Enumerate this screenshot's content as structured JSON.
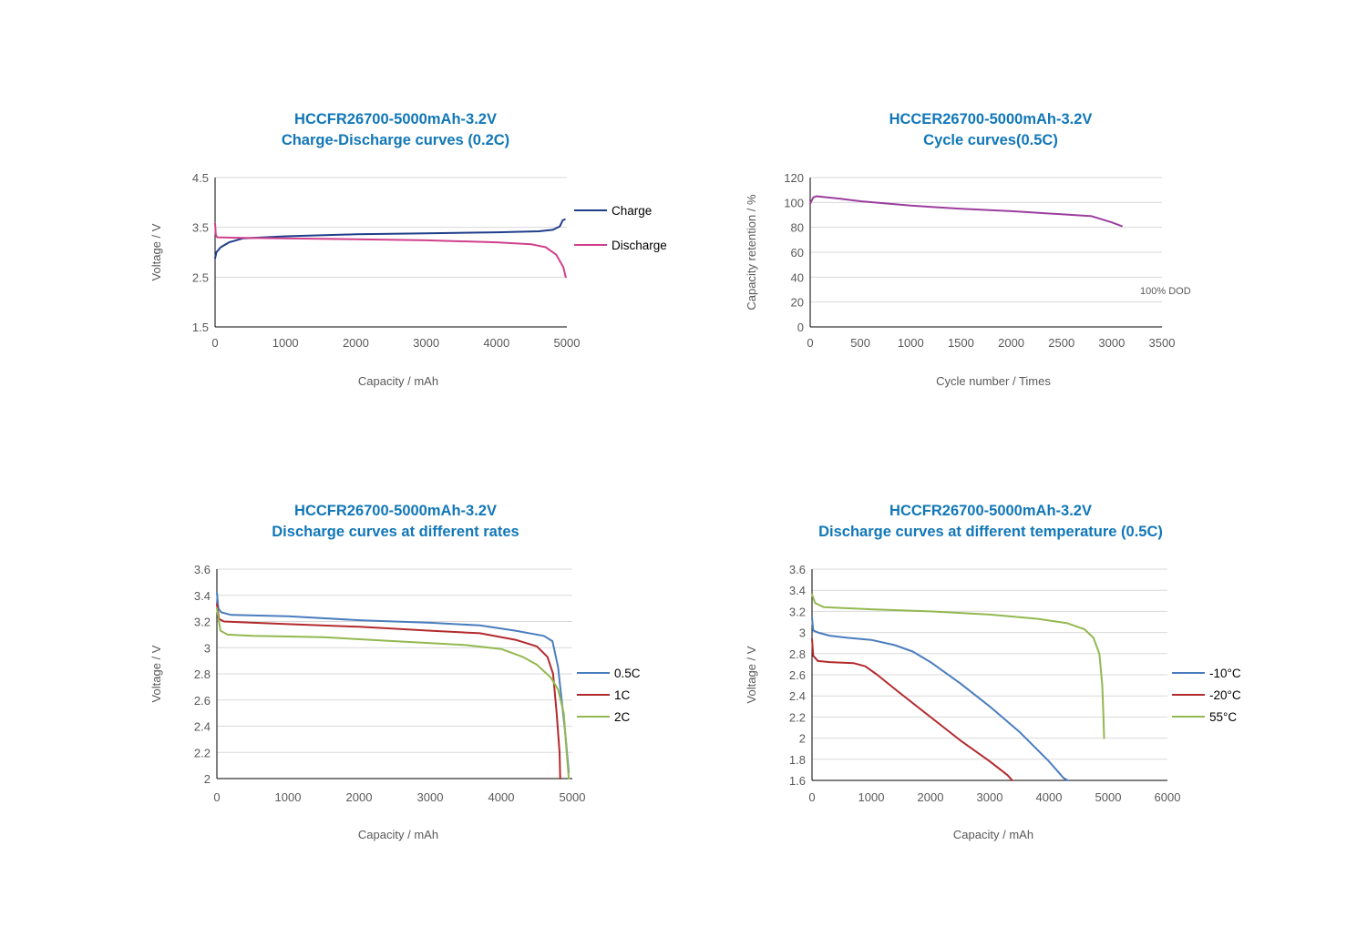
{
  "colors": {
    "title": "#1177b8",
    "charge": "#1f3e8a",
    "discharge": "#d0408c",
    "cycle": "#9b3d9e",
    "blue": "#4a7dbf",
    "red": "#b22a2e",
    "green": "#93b850",
    "grid": "#d9d9d9",
    "axis": "#000000",
    "text": "#595959"
  },
  "chart_data": [
    {
      "type": "line",
      "title_line1": "HCCFR26700-5000mAh-3.2V",
      "title_line2": "Charge-Discharge curves (0.2C)",
      "xlabel": "Capacity / mAh",
      "ylabel": "Voltage / V",
      "xlim": [
        0,
        5000
      ],
      "ylim": [
        1.5,
        4.5
      ],
      "xticks": [
        0,
        1000,
        2000,
        3000,
        4000,
        5000
      ],
      "yticks": [
        1.5,
        2.5,
        3.5,
        4.5
      ],
      "ytick_labels": [
        "1.5",
        "2.5",
        "3.5",
        "4.5"
      ],
      "legend": "right",
      "series": [
        {
          "name": "Charge",
          "color_key": "charge",
          "points": [
            [
              0,
              2.88
            ],
            [
              20,
              3.0
            ],
            [
              80,
              3.1
            ],
            [
              200,
              3.2
            ],
            [
              400,
              3.28
            ],
            [
              1000,
              3.32
            ],
            [
              2000,
              3.36
            ],
            [
              3000,
              3.38
            ],
            [
              4000,
              3.4
            ],
            [
              4600,
              3.42
            ],
            [
              4800,
              3.45
            ],
            [
              4900,
              3.52
            ],
            [
              4940,
              3.64
            ],
            [
              4970,
              3.66
            ]
          ]
        },
        {
          "name": "Discharge",
          "color_key": "discharge",
          "points": [
            [
              0,
              3.58
            ],
            [
              10,
              3.35
            ],
            [
              30,
              3.3
            ],
            [
              300,
              3.29
            ],
            [
              1000,
              3.28
            ],
            [
              2000,
              3.26
            ],
            [
              3000,
              3.24
            ],
            [
              4000,
              3.2
            ],
            [
              4500,
              3.16
            ],
            [
              4700,
              3.1
            ],
            [
              4850,
              2.95
            ],
            [
              4950,
              2.7
            ],
            [
              4985,
              2.5
            ]
          ]
        }
      ]
    },
    {
      "type": "line",
      "title_line1": "HCCER26700-5000mAh-3.2V",
      "title_line2": "Cycle curves(0.5C)",
      "xlabel": "Cycle number / Times",
      "ylabel": "Capacity retention / %",
      "xlim": [
        0,
        3500
      ],
      "ylim": [
        0,
        120
      ],
      "xticks": [
        0,
        500,
        1000,
        1500,
        2000,
        2500,
        3000,
        3500
      ],
      "yticks": [
        0,
        20,
        40,
        60,
        80,
        100,
        120
      ],
      "ytick_labels": [
        "0",
        "20",
        "40",
        "60",
        "80",
        "100",
        "120"
      ],
      "annotation": "100% DOD",
      "legend": "none",
      "series": [
        {
          "name": "Cycle",
          "color_key": "cycle",
          "points": [
            [
              0,
              99
            ],
            [
              30,
              104
            ],
            [
              60,
              105
            ],
            [
              300,
              103
            ],
            [
              500,
              101
            ],
            [
              1000,
              97.5
            ],
            [
              1500,
              95
            ],
            [
              2000,
              93
            ],
            [
              2500,
              90.5
            ],
            [
              2800,
              89
            ],
            [
              3000,
              84
            ],
            [
              3100,
              81
            ]
          ]
        }
      ]
    },
    {
      "type": "line",
      "title_line1": "HCCFR26700-5000mAh-3.2V",
      "title_line2": "Discharge curves at different rates",
      "xlabel": "Capacity / mAh",
      "ylabel": "Voltage / V",
      "xlim": [
        0,
        5000
      ],
      "ylim": [
        2.0,
        3.6
      ],
      "xticks": [
        0,
        1000,
        2000,
        3000,
        4000,
        5000
      ],
      "yticks": [
        2.0,
        2.2,
        2.4,
        2.6,
        2.8,
        3.0,
        3.2,
        3.4,
        3.6
      ],
      "ytick_labels": [
        "2",
        "2.2",
        "2.4",
        "2.6",
        "2.8",
        "3",
        "3.2",
        "3.4",
        "3.6"
      ],
      "legend": "right",
      "series": [
        {
          "name": "0.5C",
          "color_key": "blue",
          "points": [
            [
              0,
              3.42
            ],
            [
              20,
              3.3
            ],
            [
              60,
              3.27
            ],
            [
              200,
              3.25
            ],
            [
              1000,
              3.24
            ],
            [
              2000,
              3.21
            ],
            [
              3000,
              3.19
            ],
            [
              3700,
              3.17
            ],
            [
              4200,
              3.13
            ],
            [
              4600,
              3.09
            ],
            [
              4720,
              3.05
            ],
            [
              4800,
              2.85
            ],
            [
              4850,
              2.6
            ],
            [
              4900,
              2.35
            ],
            [
              4950,
              2.05
            ]
          ]
        },
        {
          "name": "1C",
          "color_key": "red",
          "points": [
            [
              0,
              3.33
            ],
            [
              30,
              3.22
            ],
            [
              100,
              3.2
            ],
            [
              1000,
              3.18
            ],
            [
              2000,
              3.16
            ],
            [
              3000,
              3.13
            ],
            [
              3700,
              3.11
            ],
            [
              4200,
              3.06
            ],
            [
              4500,
              3.01
            ],
            [
              4650,
              2.93
            ],
            [
              4730,
              2.8
            ],
            [
              4780,
              2.5
            ],
            [
              4820,
              2.2
            ],
            [
              4830,
              2.0
            ]
          ]
        },
        {
          "name": "2C",
          "color_key": "green",
          "points": [
            [
              0,
              3.3
            ],
            [
              50,
              3.13
            ],
            [
              150,
              3.1
            ],
            [
              500,
              3.09
            ],
            [
              1500,
              3.08
            ],
            [
              2500,
              3.05
            ],
            [
              3500,
              3.02
            ],
            [
              4000,
              2.99
            ],
            [
              4300,
              2.93
            ],
            [
              4500,
              2.87
            ],
            [
              4700,
              2.77
            ],
            [
              4800,
              2.68
            ],
            [
              4880,
              2.5
            ],
            [
              4920,
              2.2
            ],
            [
              4950,
              2.0
            ]
          ]
        }
      ]
    },
    {
      "type": "line",
      "title_line1": "HCCFR26700-5000mAh-3.2V",
      "title_line2": "Discharge curves at different temperature (0.5C)",
      "xlabel": "Capacity / mAh",
      "ylabel": "Voltage / V",
      "xlim": [
        0,
        6000
      ],
      "ylim": [
        1.6,
        3.6
      ],
      "xticks": [
        0,
        1000,
        2000,
        3000,
        4000,
        5000,
        6000
      ],
      "yticks": [
        1.6,
        1.8,
        2.0,
        2.2,
        2.4,
        2.6,
        2.8,
        3.0,
        3.2,
        3.4,
        3.6
      ],
      "ytick_labels": [
        "1.6",
        "1.8",
        "2",
        "2.2",
        "2.4",
        "2.6",
        "2.8",
        "3",
        "3.2",
        "3.4",
        "3.6"
      ],
      "legend": "right",
      "series": [
        {
          "name": "-10°C",
          "color_key": "blue",
          "points": [
            [
              0,
              3.14
            ],
            [
              20,
              3.02
            ],
            [
              100,
              3.0
            ],
            [
              300,
              2.97
            ],
            [
              600,
              2.95
            ],
            [
              1000,
              2.93
            ],
            [
              1400,
              2.88
            ],
            [
              1700,
              2.82
            ],
            [
              2000,
              2.72
            ],
            [
              2500,
              2.52
            ],
            [
              3000,
              2.3
            ],
            [
              3500,
              2.06
            ],
            [
              4000,
              1.78
            ],
            [
              4250,
              1.62
            ],
            [
              4320,
              1.6
            ]
          ]
        },
        {
          "name": "-20°C",
          "color_key": "red",
          "points": [
            [
              0,
              2.94
            ],
            [
              20,
              2.78
            ],
            [
              100,
              2.73
            ],
            [
              300,
              2.72
            ],
            [
              700,
              2.71
            ],
            [
              900,
              2.68
            ],
            [
              1100,
              2.6
            ],
            [
              1500,
              2.42
            ],
            [
              2000,
              2.2
            ],
            [
              2500,
              1.98
            ],
            [
              3000,
              1.78
            ],
            [
              3300,
              1.65
            ],
            [
              3380,
              1.6
            ]
          ]
        },
        {
          "name": "55°C",
          "color_key": "green",
          "points": [
            [
              0,
              3.36
            ],
            [
              50,
              3.28
            ],
            [
              200,
              3.24
            ],
            [
              1000,
              3.22
            ],
            [
              2000,
              3.2
            ],
            [
              3000,
              3.17
            ],
            [
              3800,
              3.13
            ],
            [
              4300,
              3.09
            ],
            [
              4600,
              3.03
            ],
            [
              4750,
              2.95
            ],
            [
              4850,
              2.8
            ],
            [
              4900,
              2.5
            ],
            [
              4920,
              2.2
            ],
            [
              4930,
              2.0
            ]
          ]
        }
      ]
    }
  ]
}
